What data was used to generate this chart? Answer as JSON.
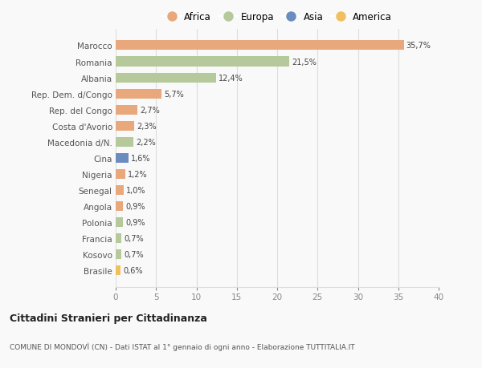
{
  "categories": [
    "Brasile",
    "Kosovo",
    "Francia",
    "Polonia",
    "Angola",
    "Senegal",
    "Nigeria",
    "Cina",
    "Macedonia d/N.",
    "Costa d'Avorio",
    "Rep. del Congo",
    "Rep. Dem. d/Congo",
    "Albania",
    "Romania",
    "Marocco"
  ],
  "values": [
    0.6,
    0.7,
    0.7,
    0.9,
    0.9,
    1.0,
    1.2,
    1.6,
    2.2,
    2.3,
    2.7,
    5.7,
    12.4,
    21.5,
    35.7
  ],
  "labels": [
    "0,6%",
    "0,7%",
    "0,7%",
    "0,9%",
    "0,9%",
    "1,0%",
    "1,2%",
    "1,6%",
    "2,2%",
    "2,3%",
    "2,7%",
    "5,7%",
    "12,4%",
    "21,5%",
    "35,7%"
  ],
  "continents": [
    "America",
    "Europa",
    "Europa",
    "Europa",
    "Africa",
    "Africa",
    "Africa",
    "Asia",
    "Europa",
    "Africa",
    "Africa",
    "Africa",
    "Europa",
    "Europa",
    "Africa"
  ],
  "colors": {
    "Africa": "#E8A87C",
    "Europa": "#B5C99A",
    "Asia": "#6B8CBF",
    "America": "#F0C060"
  },
  "legend_order": [
    "Africa",
    "Europa",
    "Asia",
    "America"
  ],
  "title": "Cittadini Stranieri per Cittadinanza",
  "subtitle": "COMUNE DI MONDOVÌ (CN) - Dati ISTAT al 1° gennaio di ogni anno - Elaborazione TUTTITALIA.IT",
  "xlim": [
    0,
    40
  ],
  "xticks": [
    0,
    5,
    10,
    15,
    20,
    25,
    30,
    35,
    40
  ],
  "background_color": "#f9f9f9",
  "grid_color": "#dddddd"
}
